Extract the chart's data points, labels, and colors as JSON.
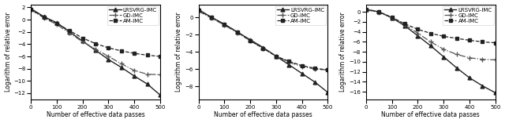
{
  "xlabel": "Number of effective data passes",
  "ylabel": "Logarithm of relative error",
  "legend_labels": [
    "LRSVRG-IMC",
    "GD-IMC",
    "AM-IMC"
  ],
  "x_ticks": [
    0,
    100,
    200,
    300,
    400,
    500
  ],
  "plots": [
    {
      "ylim": [
        -13,
        2.5
      ],
      "yticks": [
        2,
        0,
        -2,
        -4,
        -6,
        -8,
        -10,
        -12
      ],
      "lrsvrg": {
        "x": [
          0,
          50,
          100,
          150,
          200,
          250,
          300,
          350,
          400,
          450,
          500
        ],
        "y": [
          1.8,
          0.5,
          -0.5,
          -2.0,
          -3.5,
          -5.0,
          -6.5,
          -7.8,
          -9.2,
          -10.5,
          -12.3
        ]
      },
      "gd": {
        "x": [
          0,
          50,
          100,
          150,
          200,
          250,
          300,
          350,
          400,
          450,
          500
        ],
        "y": [
          1.6,
          0.3,
          -0.8,
          -2.2,
          -3.6,
          -4.8,
          -6.0,
          -7.2,
          -8.3,
          -8.9,
          -9.0
        ]
      },
      "am": {
        "x": [
          0,
          50,
          100,
          150,
          200,
          250,
          300,
          350,
          400,
          450,
          500
        ],
        "y": [
          1.7,
          0.4,
          -0.6,
          -1.8,
          -3.0,
          -3.9,
          -4.6,
          -5.1,
          -5.5,
          -5.8,
          -6.0
        ]
      }
    },
    {
      "ylim": [
        -9.5,
        1.5
      ],
      "yticks": [
        0,
        -2,
        -4,
        -6,
        -8
      ],
      "lrsvrg": {
        "x": [
          0,
          50,
          100,
          150,
          200,
          250,
          300,
          350,
          400,
          450,
          500
        ],
        "y": [
          0.9,
          0.0,
          -0.8,
          -1.7,
          -2.6,
          -3.5,
          -4.5,
          -5.5,
          -6.5,
          -7.5,
          -8.7
        ]
      },
      "gd": {
        "x": [
          0,
          50,
          100,
          150,
          200,
          250,
          300,
          350,
          400,
          450,
          500
        ],
        "y": [
          0.7,
          -0.1,
          -0.9,
          -1.8,
          -2.7,
          -3.6,
          -4.5,
          -5.2,
          -5.7,
          -6.0,
          -6.1
        ]
      },
      "am": {
        "x": [
          0,
          50,
          100,
          150,
          200,
          250,
          300,
          350,
          400,
          450,
          500
        ],
        "y": [
          0.8,
          0.0,
          -0.8,
          -1.7,
          -2.7,
          -3.6,
          -4.5,
          -5.1,
          -5.6,
          -5.9,
          -6.1
        ]
      }
    },
    {
      "ylim": [
        -17.5,
        1.5
      ],
      "yticks": [
        0,
        -2,
        -4,
        -6,
        -8,
        -10,
        -12,
        -14,
        -16
      ],
      "lrsvrg": {
        "x": [
          0,
          50,
          100,
          150,
          200,
          250,
          300,
          350,
          400,
          450,
          500
        ],
        "y": [
          0.5,
          0.0,
          -1.2,
          -2.8,
          -4.8,
          -6.8,
          -9.0,
          -11.2,
          -13.2,
          -14.8,
          -16.2
        ]
      },
      "gd": {
        "x": [
          0,
          50,
          100,
          150,
          200,
          250,
          300,
          350,
          400,
          450,
          500
        ],
        "y": [
          0.4,
          -0.1,
          -1.2,
          -2.6,
          -4.3,
          -6.0,
          -7.5,
          -8.5,
          -9.2,
          -9.5,
          -9.6
        ]
      },
      "am": {
        "x": [
          0,
          50,
          100,
          150,
          200,
          250,
          300,
          350,
          400,
          450,
          500
        ],
        "y": [
          0.5,
          0.0,
          -1.1,
          -2.4,
          -3.5,
          -4.3,
          -4.9,
          -5.3,
          -5.7,
          -6.0,
          -6.2
        ]
      }
    }
  ],
  "line_styles": {
    "lrsvrg": {
      "color": "#222222",
      "linestyle": "-",
      "marker": "^",
      "markersize": 3.5,
      "linewidth": 1.0,
      "markerfacecolor": "#222222"
    },
    "gd": {
      "color": "#555555",
      "linestyle": "-.",
      "marker": "+",
      "markersize": 5.0,
      "linewidth": 0.9,
      "markerfacecolor": "#555555"
    },
    "am": {
      "color": "#222222",
      "linestyle": "--",
      "marker": "s",
      "markersize": 3.5,
      "linewidth": 0.9,
      "markerfacecolor": "#222222"
    }
  },
  "tick_fontsize": 5.0,
  "label_fontsize": 5.5,
  "legend_fontsize": 5.0
}
